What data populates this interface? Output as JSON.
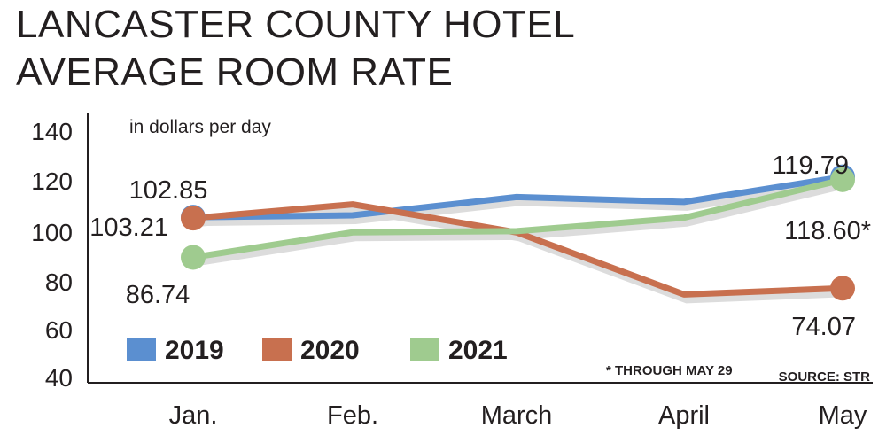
{
  "chart_data": {
    "type": "line",
    "title": [
      "LANCASTER COUNTY HOTEL",
      "AVERAGE ROOM RATE"
    ],
    "unit_label": "in dollars per day",
    "categories": [
      "Jan.",
      "Feb.",
      "March",
      "April",
      "May"
    ],
    "ylim": [
      40,
      140
    ],
    "yticks": [
      140,
      120,
      100,
      80,
      60,
      40
    ],
    "series": [
      {
        "name": "2019",
        "color": "#5b8fd0",
        "values": [
          103.21,
          104,
          111.5,
          109.5,
          119.79
        ]
      },
      {
        "name": "2020",
        "color": "#c8704f",
        "values": [
          102.85,
          108.5,
          97,
          71.5,
          74.07
        ]
      },
      {
        "name": "2021",
        "color": "#9fcb8f",
        "values": [
          86.74,
          97,
          97.5,
          103,
          118.6
        ]
      }
    ],
    "data_labels": [
      {
        "text": "102.85",
        "series": "2020",
        "index": 0
      },
      {
        "text": "103.21",
        "series": "2019",
        "index": 0
      },
      {
        "text": "86.74",
        "series": "2021",
        "index": 0
      },
      {
        "text": "119.79",
        "series": "2019",
        "index": 4
      },
      {
        "text": "118.60*",
        "series": "2021",
        "index": 4
      },
      {
        "text": "74.07",
        "series": "2020",
        "index": 4
      }
    ],
    "footnote": "* THROUGH MAY 29",
    "source": "SOURCE: STR"
  }
}
